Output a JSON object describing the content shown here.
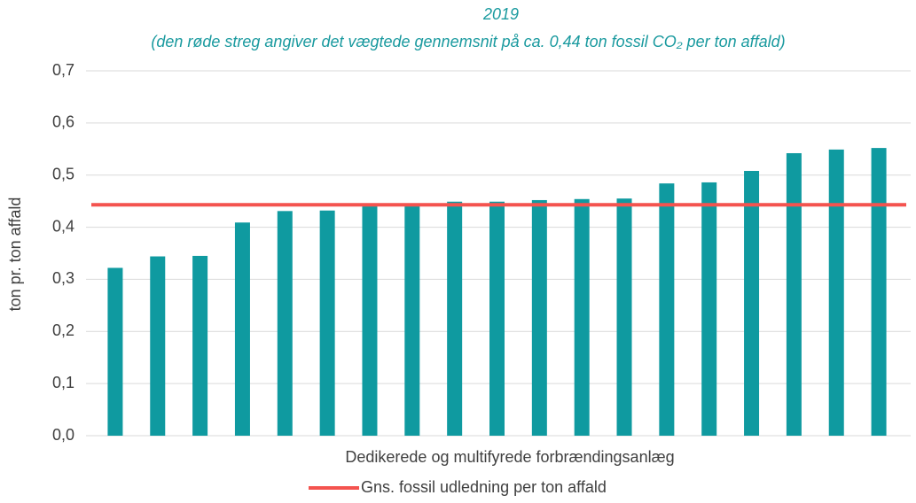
{
  "chart_data": {
    "type": "bar",
    "title": "2019",
    "subtitle": "(den røde streg angiver det vægtede gennemsnit på ca. 0,44 ton fossil CO₂ per ton affald)",
    "x_label": "Dedikerede og multifyrede forbrændingsanlæg",
    "y_label": "ton pr. ton affald",
    "categories": [
      null,
      null,
      null,
      null,
      null,
      null,
      null,
      null,
      null,
      null,
      null,
      null,
      null,
      null,
      null,
      null,
      null,
      null,
      null
    ],
    "values": [
      0.322,
      0.344,
      0.345,
      0.409,
      0.431,
      0.432,
      0.44,
      0.44,
      0.449,
      0.449,
      0.452,
      0.454,
      0.455,
      0.484,
      0.486,
      0.508,
      0.542,
      0.549,
      0.552
    ],
    "color": "#0f9aa0",
    "reference_line": {
      "name": "Gns. fossil udledning per ton affald",
      "value": 0.443,
      "color": "#f4534f"
    },
    "ylim": [
      0,
      0.7
    ],
    "yticks": [
      {
        "value": 0,
        "label": "0,0"
      },
      {
        "value": 0.1,
        "label": "0,1"
      },
      {
        "value": 0.2,
        "label": "0,2"
      },
      {
        "value": 0.3,
        "label": "0,3"
      },
      {
        "value": 0.4,
        "label": "0,4"
      },
      {
        "value": 0.5,
        "label": "0,5"
      },
      {
        "value": 0.6,
        "label": "0,6"
      },
      {
        "value": 0.7,
        "label": "0,7"
      }
    ],
    "grid": true,
    "legend": "bottom"
  }
}
